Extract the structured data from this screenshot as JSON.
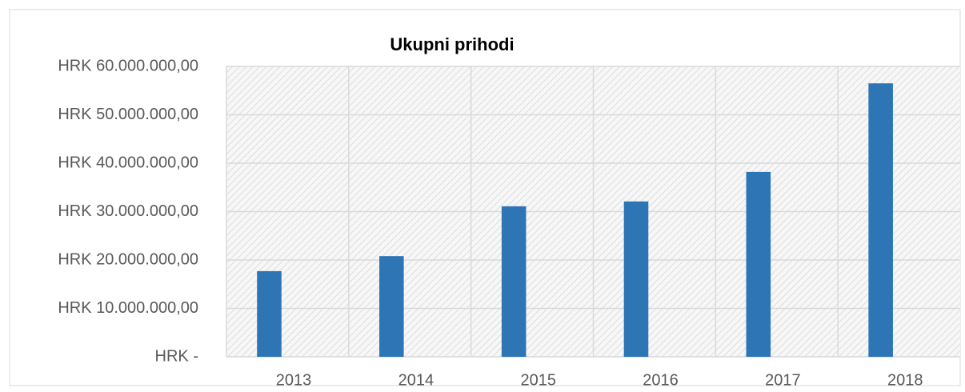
{
  "chart_data": {
    "type": "bar",
    "title": "Ukupni prihodi",
    "categories": [
      "2013",
      "2014",
      "2015",
      "2016",
      "2017",
      "2018"
    ],
    "values": [
      17700000,
      20800000,
      31100000,
      32100000,
      38200000,
      56500000
    ],
    "color": "#2e75b6",
    "ylim": [
      0,
      60000000
    ],
    "yticks": [
      {
        "value": 0,
        "label": "HRK -"
      },
      {
        "value": 10000000,
        "label": "HRK 10.000.000,00"
      },
      {
        "value": 20000000,
        "label": "HRK 20.000.000,00"
      },
      {
        "value": 30000000,
        "label": "HRK 30.000.000,00"
      },
      {
        "value": 40000000,
        "label": "HRK 40.000.000,00"
      },
      {
        "value": 50000000,
        "label": "HRK 50.000.000,00"
      },
      {
        "value": 60000000,
        "label": "HRK 60.000.000,00"
      }
    ],
    "grid": true
  }
}
